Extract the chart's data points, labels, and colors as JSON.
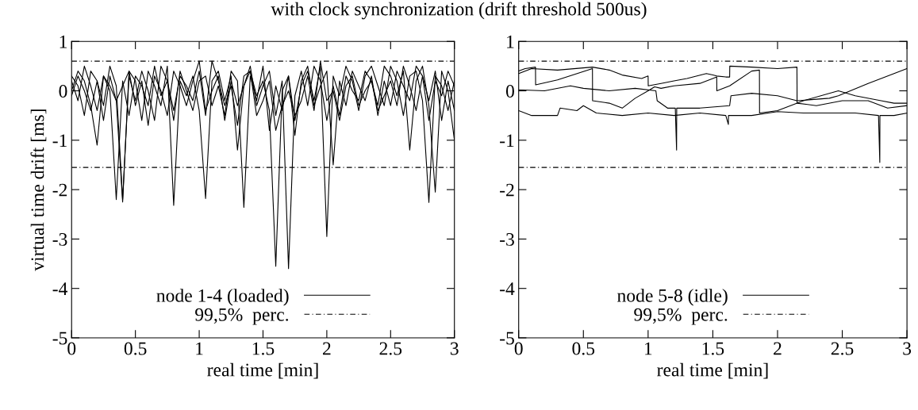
{
  "chart_data": [
    {
      "type": "line",
      "title": "with clock synchronization (drift threshold 500us)",
      "xlabel": "real time [min]",
      "ylabel": "virtual time drift [ms]",
      "x": [
        0,
        0.05,
        0.1,
        0.15,
        0.2,
        0.25,
        0.3,
        0.35,
        0.4,
        0.45,
        0.5,
        0.55,
        0.6,
        0.65,
        0.7,
        0.75,
        0.8,
        0.85,
        0.9,
        0.95,
        1.0,
        1.05,
        1.1,
        1.15,
        1.2,
        1.25,
        1.3,
        1.35,
        1.4,
        1.45,
        1.5,
        1.55,
        1.6,
        1.65,
        1.7,
        1.75,
        1.8,
        1.85,
        1.9,
        1.95,
        2.0,
        2.05,
        2.1,
        2.15,
        2.2,
        2.25,
        2.3,
        2.35,
        2.4,
        2.45,
        2.5,
        2.55,
        2.6,
        2.65,
        2.7,
        2.75,
        2.8,
        2.85,
        2.9,
        2.95,
        3.0
      ],
      "series": [
        {
          "name": "node 1-4 (loaded)",
          "color": "#000000",
          "values": [
            0.3,
            0.1,
            -0.5,
            0.4,
            0.2,
            -0.3,
            0.5,
            0.1,
            -2.2,
            0.3,
            -0.2,
            0.4,
            0.0,
            -0.6,
            0.5,
            0.2,
            -0.4,
            0.3,
            0.1,
            -0.2,
            0.4,
            -0.5,
            0.6,
            0.2,
            -0.3,
            0.1,
            -0.7,
            0.3,
            0.4,
            -0.1,
            0.2,
            -0.4,
            -3.55,
            0.0,
            0.3,
            -0.6,
            0.1,
            0.4,
            -0.2,
            0.5,
            -2.95,
            0.3,
            -0.1,
            0.5,
            0.2,
            -0.4,
            0.3,
            0.5,
            0.1,
            -0.3,
            0.5,
            0.2,
            -0.5,
            0.3,
            0.4,
            -0.2,
            -2.26,
            0.3,
            0.1,
            -0.4,
            0.2
          ]
        },
        {
          "color": "#000000",
          "values": [
            0.0,
            0.4,
            0.2,
            -0.3,
            -1.1,
            0.3,
            0.1,
            -0.2,
            -2.25,
            0.4,
            0.2,
            -0.6,
            0.4,
            0.1,
            -0.3,
            0.5,
            -2.32,
            0.2,
            -0.1,
            0.3,
            -0.4,
            -2.18,
            0.2,
            0.4,
            -0.2,
            0.3,
            -1.2,
            0.1,
            0.5,
            -0.3,
            0.1,
            0.4,
            -0.5,
            0.2,
            -3.6,
            -0.1,
            0.4,
            -0.3,
            0.5,
            0.2,
            -0.6,
            0.1,
            -0.5,
            0.3,
            0.0,
            -0.2,
            0.4,
            0.2,
            -0.3,
            0.5,
            0.3,
            -0.1,
            0.4,
            -1.2,
            0.2,
            0.5,
            -0.3,
            -2.05,
            0.4,
            0.0,
            -1.0
          ]
        },
        {
          "color": "#000000",
          "values": [
            0.2,
            -0.2,
            0.5,
            0.1,
            -0.4,
            0.3,
            0.0,
            -2.2,
            0.2,
            -0.5,
            0.3,
            0.1,
            -0.3,
            0.5,
            -0.1,
            0.2,
            -0.6,
            0.4,
            0.0,
            -0.4,
            0.2,
            0.3,
            -0.3,
            0.1,
            -0.5,
            0.4,
            0.2,
            -2.36,
            0.3,
            -0.2,
            0.5,
            -0.8,
            0.1,
            -0.4,
            0.3,
            -0.9,
            0.2,
            0.5,
            -0.3,
            0.1,
            0.4,
            -1.5,
            0.2,
            -0.3,
            0.4,
            0.1,
            -0.2,
            0.3,
            -0.5,
            0.2,
            -0.3,
            0.4,
            0.1,
            -0.2,
            0.5,
            0.3,
            -0.6,
            0.2,
            -0.1,
            0.4,
            0.1
          ]
        },
        {
          "color": "#000000",
          "values": [
            -0.1,
            0.3,
            0.0,
            -0.4,
            0.2,
            -0.6,
            0.3,
            -0.2,
            0.1,
            0.4,
            -0.3,
            0.2,
            -0.7,
            0.3,
            0.0,
            -0.5,
            0.4,
            0.1,
            -0.3,
            0.2,
            0.6,
            -0.4,
            0.0,
            0.3,
            -0.6,
            0.2,
            -0.3,
            0.1,
            0.4,
            -0.5,
            -0.2,
            0.2,
            -0.8,
            -0.3,
            0.0,
            -0.5,
            -0.2,
            0.3,
            -0.4,
            0.6,
            -0.2,
            0.0,
            -0.6,
            0.1,
            0.3,
            -0.3,
            0.0,
            0.2,
            -0.4,
            -0.1,
            0.2,
            -0.3,
            0.5,
            0.1,
            -0.4,
            0.3,
            -0.2,
            0.4,
            -0.6,
            0.2,
            -0.4
          ]
        }
      ],
      "ref_lines": [
        {
          "axis": "y",
          "value": 0.6,
          "label": "99,5%  perc.",
          "color": "#000000"
        },
        {
          "axis": "y",
          "value": -1.55,
          "color": "#000000"
        }
      ],
      "xlim": [
        0,
        3
      ],
      "xticks": [
        0,
        0.5,
        1,
        1.5,
        2,
        2.5,
        3
      ],
      "ylim": [
        -5,
        1
      ],
      "yticks": [
        -5,
        -4,
        -3,
        -2,
        -1,
        0,
        1
      ],
      "legend": "bottom",
      "grid": false
    },
    {
      "type": "line",
      "xlabel": "real time [min]",
      "series": [
        {
          "name": "node 5-8 (idle)",
          "color": "#000000",
          "x": [
            0,
            0.05,
            0.13,
            0.131,
            0.3,
            0.57,
            0.571,
            0.7,
            0.8,
            0.9,
            1.0,
            1.05,
            1.1,
            1.2,
            1.4,
            1.5,
            1.53,
            1.531,
            1.63,
            1.8,
            1.86,
            1.861,
            2.0,
            2.2,
            2.47,
            2.6,
            2.8,
            2.9,
            3.0
          ],
          "values": [
            0.4,
            0.45,
            0.48,
            0.12,
            0.22,
            0.45,
            -0.2,
            -0.25,
            -0.35,
            -0.15,
            0.0,
            0.08,
            0.05,
            0.1,
            0.15,
            0.25,
            0.28,
            0.0,
            0.1,
            0.4,
            0.42,
            -0.45,
            -0.4,
            -0.2,
            0.0,
            -0.1,
            -0.2,
            -0.25,
            -0.25
          ]
        },
        {
          "color": "#000000",
          "x": [
            0,
            0.1,
            0.3,
            0.57,
            0.7,
            0.8,
            0.95,
            1.0,
            1.001,
            1.1,
            1.2,
            1.3,
            1.45,
            1.5,
            1.53,
            1.6,
            1.63,
            1.631,
            1.8,
            2.0,
            2.15,
            2.151,
            2.3,
            2.5,
            2.7,
            2.85,
            3.0
          ],
          "values": [
            0.35,
            0.45,
            0.42,
            0.48,
            0.42,
            0.32,
            0.25,
            0.3,
            0.1,
            0.15,
            0.2,
            0.25,
            0.35,
            0.32,
            0.3,
            0.28,
            0.28,
            0.5,
            0.48,
            0.45,
            0.48,
            -0.25,
            -0.3,
            -0.2,
            -0.2,
            -0.35,
            -0.3
          ]
        },
        {
          "color": "#000000",
          "x": [
            0,
            0.2,
            0.4,
            0.5,
            0.7,
            0.9,
            1.06,
            1.07,
            1.15,
            1.21,
            1.22,
            1.221,
            1.4,
            1.63,
            1.64,
            1.8,
            2.0,
            2.15,
            2.4,
            2.47,
            2.7,
            2.9,
            3.0
          ],
          "values": [
            0.02,
            0.0,
            0.1,
            0.05,
            0.0,
            0.05,
            0.0,
            -0.2,
            -0.35,
            -0.35,
            -1.2,
            -0.35,
            -0.35,
            -0.3,
            -0.1,
            -0.05,
            -0.1,
            -0.2,
            -0.15,
            -0.1,
            0.15,
            0.35,
            0.45
          ]
        },
        {
          "color": "#000000",
          "x": [
            0,
            0.1,
            0.3,
            0.32,
            0.45,
            0.5,
            0.6,
            0.8,
            1.0,
            1.2,
            1.4,
            1.6,
            1.62,
            1.621,
            1.8,
            2.0,
            2.2,
            2.4,
            2.6,
            2.78,
            2.79,
            2.791,
            2.9,
            3.0
          ],
          "values": [
            -0.4,
            -0.5,
            -0.5,
            -0.35,
            -0.4,
            -0.3,
            -0.45,
            -0.5,
            -0.45,
            -0.5,
            -0.45,
            -0.5,
            -0.68,
            -0.5,
            -0.5,
            -0.42,
            -0.45,
            -0.45,
            -0.45,
            -0.5,
            -1.45,
            -0.5,
            -0.5,
            -0.45
          ]
        }
      ],
      "ref_lines": [
        {
          "axis": "y",
          "value": 0.6,
          "label": "99,5%  perc.",
          "color": "#000000"
        },
        {
          "axis": "y",
          "value": -1.55,
          "color": "#000000"
        }
      ],
      "xlim": [
        0,
        3
      ],
      "xticks": [
        0,
        0.5,
        1,
        1.5,
        2,
        2.5,
        3
      ],
      "ylim": [
        -5,
        1
      ],
      "yticks": [
        -5,
        -4,
        -3,
        -2,
        -1,
        0,
        1
      ],
      "legend": "bottom",
      "grid": false
    }
  ]
}
